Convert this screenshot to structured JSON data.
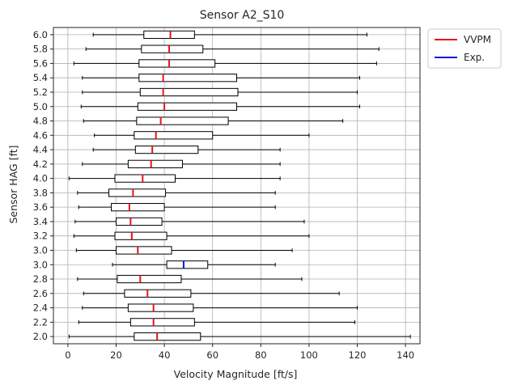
{
  "chart_data": {
    "type": "boxplot",
    "orientation": "horizontal",
    "title": "Sensor A2_S10",
    "xlabel": "Velocity Magnitude [ft/s]",
    "ylabel": "Sensor HAG [ft]",
    "xlim": [
      -6,
      146
    ],
    "xticks": [
      0,
      20,
      40,
      60,
      80,
      100,
      120,
      140
    ],
    "grid": true,
    "legend": {
      "position": "outside-top-right",
      "entries": [
        {
          "label": "VVPM",
          "color": "#e8141c"
        },
        {
          "label": "Exp.",
          "color": "#1414e0"
        }
      ]
    },
    "colors": {
      "box": "#000000",
      "vvpm_median": "#e8141c",
      "exp_median": "#1414e0",
      "grid": "#b0b0b0"
    },
    "boxes": [
      {
        "label": "2.0",
        "series": "VVPM",
        "whislo": 0.5,
        "q1": 27.5,
        "med": 37,
        "q3": 55,
        "whishi": 142
      },
      {
        "label": "2.2",
        "series": "VVPM",
        "whislo": 4.5,
        "q1": 26,
        "med": 35.5,
        "q3": 52.5,
        "whishi": 119
      },
      {
        "label": "2.4",
        "series": "VVPM",
        "whislo": 6,
        "q1": 25,
        "med": 35.5,
        "q3": 52,
        "whishi": 120
      },
      {
        "label": "2.6",
        "series": "VVPM",
        "whislo": 6.5,
        "q1": 23.5,
        "med": 33,
        "q3": 51,
        "whishi": 112.5
      },
      {
        "label": "2.8",
        "series": "VVPM",
        "whislo": 4,
        "q1": 20.5,
        "med": 30,
        "q3": 47,
        "whishi": 97
      },
      {
        "label": "3.0",
        "series": "Exp.",
        "whislo": 18.5,
        "q1": 41,
        "med": 48,
        "q3": 58,
        "whishi": 86
      },
      {
        "label": "3.0",
        "series": "VVPM",
        "whislo": 3.5,
        "q1": 20,
        "med": 29,
        "q3": 43,
        "whishi": 93
      },
      {
        "label": "3.2",
        "series": "VVPM",
        "whislo": 2.5,
        "q1": 19.5,
        "med": 26.5,
        "q3": 41,
        "whishi": 100
      },
      {
        "label": "3.4",
        "series": "VVPM",
        "whislo": 3,
        "q1": 20,
        "med": 26,
        "q3": 39,
        "whishi": 98
      },
      {
        "label": "3.6",
        "series": "VVPM",
        "whislo": 4.5,
        "q1": 18,
        "med": 25.5,
        "q3": 40,
        "whishi": 86
      },
      {
        "label": "3.8",
        "series": "VVPM",
        "whislo": 4,
        "q1": 17,
        "med": 27,
        "q3": 40.5,
        "whishi": 86
      },
      {
        "label": "4.0",
        "series": "VVPM",
        "whislo": 0.5,
        "q1": 19.5,
        "med": 31,
        "q3": 44.5,
        "whishi": 88
      },
      {
        "label": "4.2",
        "series": "VVPM",
        "whislo": 6,
        "q1": 25,
        "med": 34.5,
        "q3": 47.5,
        "whishi": 88
      },
      {
        "label": "4.4",
        "series": "VVPM",
        "whislo": 10.5,
        "q1": 28,
        "med": 35,
        "q3": 54,
        "whishi": 88
      },
      {
        "label": "4.6",
        "series": "VVPM",
        "whislo": 11,
        "q1": 27.5,
        "med": 36.5,
        "q3": 60,
        "whishi": 100
      },
      {
        "label": "4.8",
        "series": "VVPM",
        "whislo": 6.5,
        "q1": 28.5,
        "med": 38.5,
        "q3": 66.5,
        "whishi": 114
      },
      {
        "label": "5.0",
        "series": "VVPM",
        "whislo": 5.5,
        "q1": 29,
        "med": 40,
        "q3": 70,
        "whishi": 121
      },
      {
        "label": "5.2",
        "series": "VVPM",
        "whislo": 6,
        "q1": 30,
        "med": 39.5,
        "q3": 70.5,
        "whishi": 120
      },
      {
        "label": "5.4",
        "series": "VVPM",
        "whislo": 6,
        "q1": 29.5,
        "med": 39.5,
        "q3": 70,
        "whishi": 121
      },
      {
        "label": "5.6",
        "series": "VVPM",
        "whislo": 2.5,
        "q1": 29.5,
        "med": 42,
        "q3": 61,
        "whishi": 128
      },
      {
        "label": "5.8",
        "series": "VVPM",
        "whislo": 7.5,
        "q1": 30.5,
        "med": 42,
        "q3": 56,
        "whishi": 129
      },
      {
        "label": "6.0",
        "series": "VVPM",
        "whislo": 10.5,
        "q1": 31.5,
        "med": 42.5,
        "q3": 52.5,
        "whishi": 124
      }
    ]
  }
}
